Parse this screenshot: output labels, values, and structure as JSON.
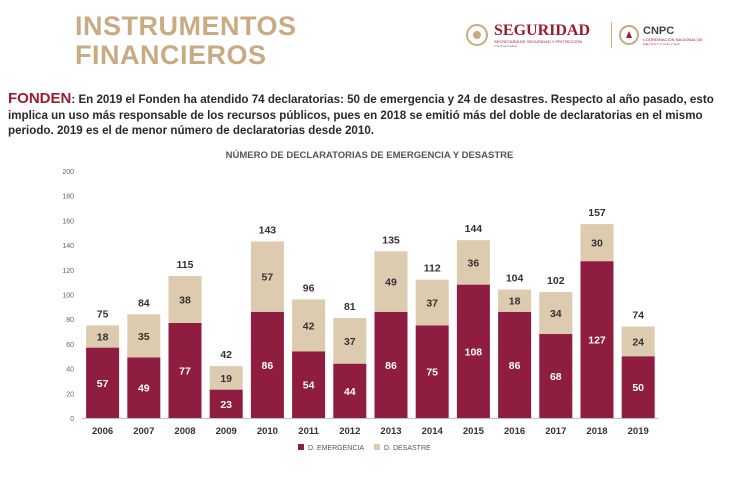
{
  "header": {
    "title_line1": "INSTRUMENTOS",
    "title_line2": "FINANCIEROS",
    "logo1_name": "SEGURIDAD",
    "logo1_sub": "SECRETARÍA DE SEGURIDAD Y PROTECCIÓN CIUDADANA",
    "logo2_name": "CNPC",
    "logo2_sub": "COORDINACIÓN NACIONAL DE PROTECCIÓN CIVIL"
  },
  "paragraph": {
    "lead": "FONDEN",
    "sep": ":",
    "text": " En 2019 el Fonden ha atendido 74 declaratorias: 50 de emergencia y 24 de desastres. Respecto al año pasado, esto implica un uso más responsable de los recursos públicos, pues en 2018 se emitió más del doble de declaratorias en el mismo periodo. 2019 es el de menor número de declaratorias desde 2010."
  },
  "chart_data": {
    "type": "bar",
    "stacked": true,
    "title": "NÚMERO DE DECLARATORIAS DE EMERGENCIA Y DESASTRE",
    "categories": [
      "2006",
      "2007",
      "2008",
      "2009",
      "2010",
      "2011",
      "2012",
      "2013",
      "2014",
      "2015",
      "2016",
      "2017",
      "2018",
      "2019"
    ],
    "series": [
      {
        "name": "D. EMERGENCIA",
        "values": [
          57,
          49,
          77,
          23,
          86,
          54,
          44,
          86,
          75,
          108,
          86,
          68,
          127,
          50
        ],
        "color": "#8e1d3f"
      },
      {
        "name": "D. DESASTRE",
        "values": [
          18,
          35,
          38,
          19,
          57,
          42,
          37,
          49,
          37,
          36,
          18,
          34,
          30,
          24
        ],
        "color": "#ddcbb0"
      }
    ],
    "totals": [
      75,
      84,
      115,
      42,
      143,
      96,
      81,
      135,
      112,
      144,
      104,
      102,
      157,
      74
    ],
    "ylim": [
      0,
      200
    ],
    "yticks": [
      0,
      20,
      40,
      60,
      80,
      100,
      120,
      140,
      160,
      180,
      200
    ],
    "grid": false,
    "legend": "bottom-center"
  }
}
